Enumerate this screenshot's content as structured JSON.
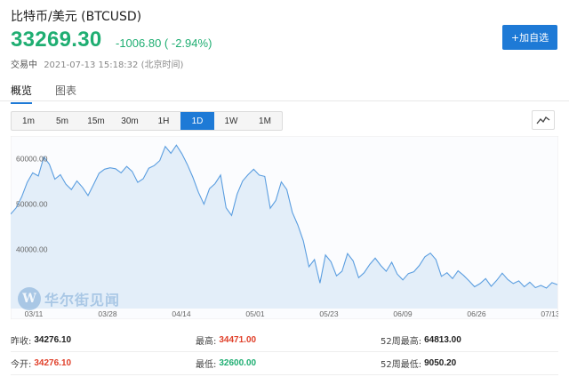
{
  "header": {
    "title": "比特币/美元 (BTCUSD)",
    "price": "33269.30",
    "change": "-1006.80 ( -2.94%)",
    "status_label": "交易中",
    "timestamp": "2021-07-13 15:18:32 (北京时间)",
    "add_button": "+加自选"
  },
  "tabs": [
    {
      "label": "概览",
      "active": true
    },
    {
      "label": "图表",
      "active": false
    }
  ],
  "ranges": [
    "1m",
    "5m",
    "15m",
    "30m",
    "1H",
    "1D",
    "1W",
    "1M"
  ],
  "active_range": "1D",
  "icons": {
    "chart_type": "line-chart-icon",
    "watermark_logo": "wallstreetcn-logo"
  },
  "watermark": {
    "logo_letter": "W",
    "text": "华尔街见闻"
  },
  "colors": {
    "accent": "#1e7ad6",
    "down": "#1fae72",
    "up": "#e0402a",
    "area_fill": "#e3eef9",
    "line": "#5b9ee0"
  },
  "chart_data": {
    "type": "area",
    "y_ticks": [
      "60000.00",
      "50000.00",
      "40000.00"
    ],
    "y_tick_values": [
      60000,
      50000,
      40000
    ],
    "ylim": [
      28000,
      66000
    ],
    "x_ticks": [
      "03/11",
      "03/28",
      "04/14",
      "05/01",
      "05/23",
      "06/09",
      "06/26",
      "07/13"
    ],
    "values": [
      48800,
      50200,
      52600,
      55800,
      57900,
      57200,
      61400,
      59800,
      56500,
      57500,
      55400,
      54200,
      56100,
      54700,
      52900,
      55300,
      57800,
      58700,
      59000,
      58800,
      57900,
      59300,
      58200,
      55800,
      56600,
      58900,
      59500,
      60600,
      63700,
      62200,
      64000,
      62100,
      59700,
      56900,
      53600,
      51000,
      54400,
      55500,
      57400,
      50200,
      48500,
      53200,
      56100,
      57500,
      58700,
      57400,
      57100,
      50100,
      51800,
      55900,
      54200,
      49200,
      46400,
      42900,
      37200,
      38800,
      33600,
      39800,
      38300,
      35200,
      36200,
      40100,
      38500,
      34800,
      35900,
      37700,
      39100,
      37500,
      36200,
      38200,
      35600,
      34300,
      35700,
      36100,
      37500,
      39400,
      40200,
      38800,
      35100,
      35900,
      34600,
      36300,
      35300,
      34100,
      32800,
      33500,
      34600,
      32900,
      34200,
      35800,
      34400,
      33500,
      34100,
      32800,
      33800,
      32600,
      33100,
      32500,
      33700,
      33269
    ]
  },
  "stats": [
    [
      {
        "label": "昨收:",
        "value": "34276.10",
        "tone": "black"
      },
      {
        "label": "最高:",
        "value": "34471.00",
        "tone": "red"
      },
      {
        "label": "52周最高:",
        "value": "64813.00",
        "tone": "black"
      }
    ],
    [
      {
        "label": "今开:",
        "value": "34276.10",
        "tone": "red"
      },
      {
        "label": "最低:",
        "value": "32600.00",
        "tone": "green"
      },
      {
        "label": "52周最低:",
        "value": "9050.20",
        "tone": "black"
      }
    ]
  ]
}
